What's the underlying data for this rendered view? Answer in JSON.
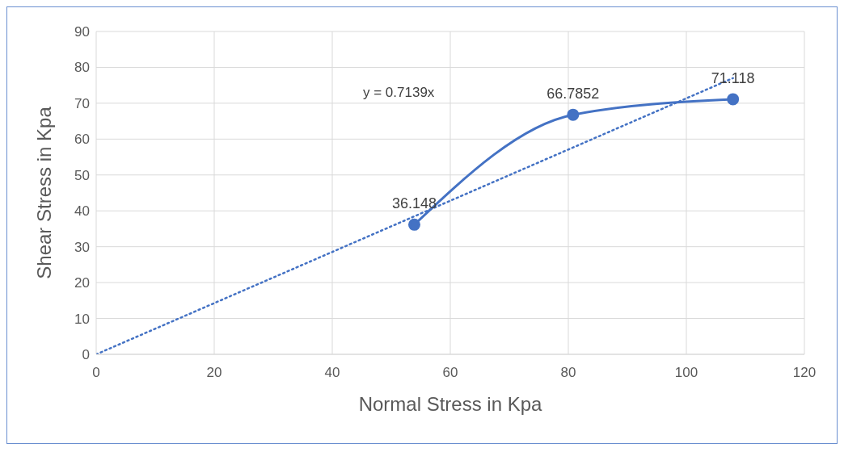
{
  "chart_data": {
    "type": "line",
    "xlabel": "Normal Stress in Kpa",
    "ylabel": "Shear Stress in Kpa",
    "xlim": [
      0,
      120
    ],
    "xticks": [
      0,
      20,
      40,
      60,
      80,
      100,
      120
    ],
    "ylim": [
      0,
      90
    ],
    "yticks": [
      0,
      10,
      20,
      30,
      40,
      50,
      60,
      70,
      80,
      90
    ],
    "grid": true,
    "annotations": [
      "y = 0.7139x"
    ],
    "series": [
      {
        "color": "#4472c4",
        "x": [
          53.9,
          80.8,
          107.9
        ],
        "values": [
          36.148,
          66.7852,
          71.118
        ],
        "marker": "circle",
        "line_style": "solid",
        "data_labels": true
      },
      {
        "color": "#4472c4",
        "x": [
          0,
          107.9
        ],
        "values": [
          0,
          77
        ],
        "marker": "none",
        "line_style": "dotted"
      }
    ]
  }
}
